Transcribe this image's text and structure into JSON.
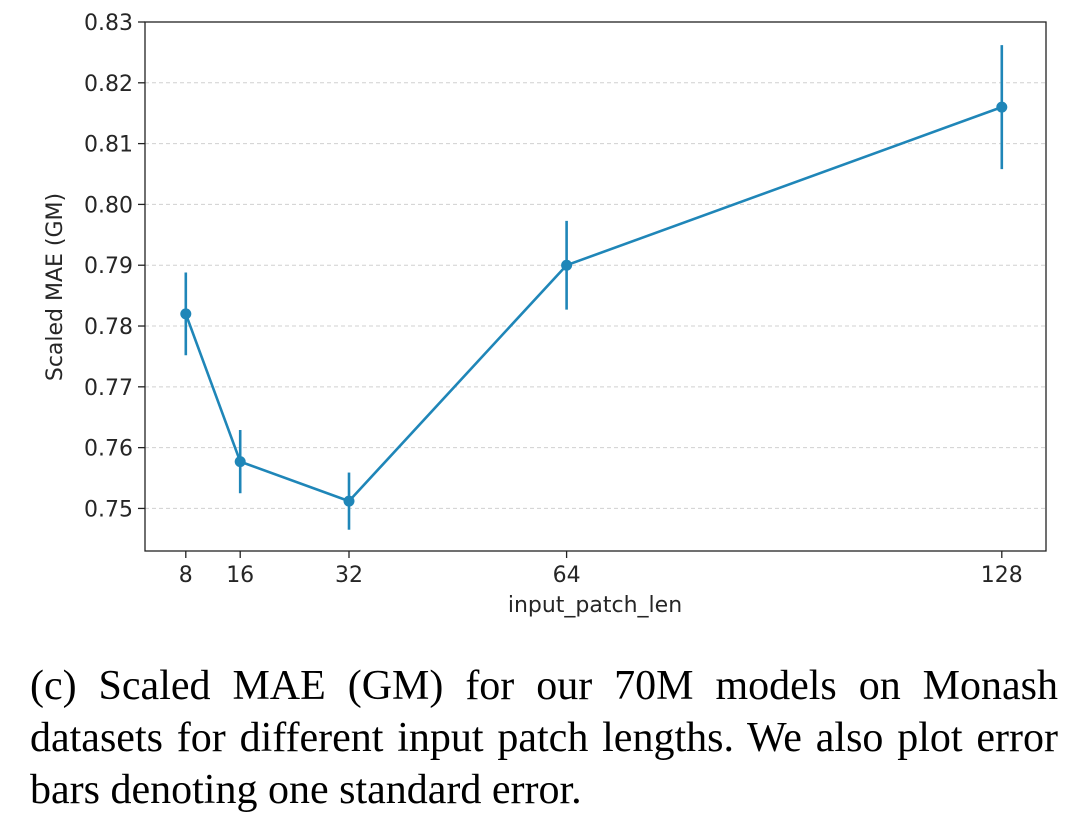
{
  "chart_data": {
    "type": "line",
    "title": "",
    "xlabel": "input_patch_len",
    "ylabel": "Scaled MAE (GM)",
    "x": [
      8,
      16,
      32,
      64,
      128
    ],
    "series": [
      {
        "values": [
          0.782,
          0.7577,
          0.7512,
          0.79,
          0.816
        ],
        "error": [
          0.0068,
          0.0052,
          0.0047,
          0.0073,
          0.0102
        ]
      }
    ],
    "xticks": [
      8,
      16,
      32,
      64,
      128
    ],
    "yticks": [
      "0.75",
      "0.76",
      "0.77",
      "0.78",
      "0.79",
      "0.80",
      "0.81",
      "0.82",
      "0.83"
    ],
    "xlim": [
      2,
      134.5
    ],
    "ylim": [
      0.743,
      0.83
    ],
    "grid": "horizontal dashed",
    "legend": "none",
    "colors": {
      "line": "#1f86b8",
      "grid": "#d0d0d0",
      "axes": "#222222"
    }
  },
  "caption": "(c) Scaled MAE (GM) for our 70M models on Monash datasets for different input patch lengths. We also plot error bars denoting one standard error."
}
